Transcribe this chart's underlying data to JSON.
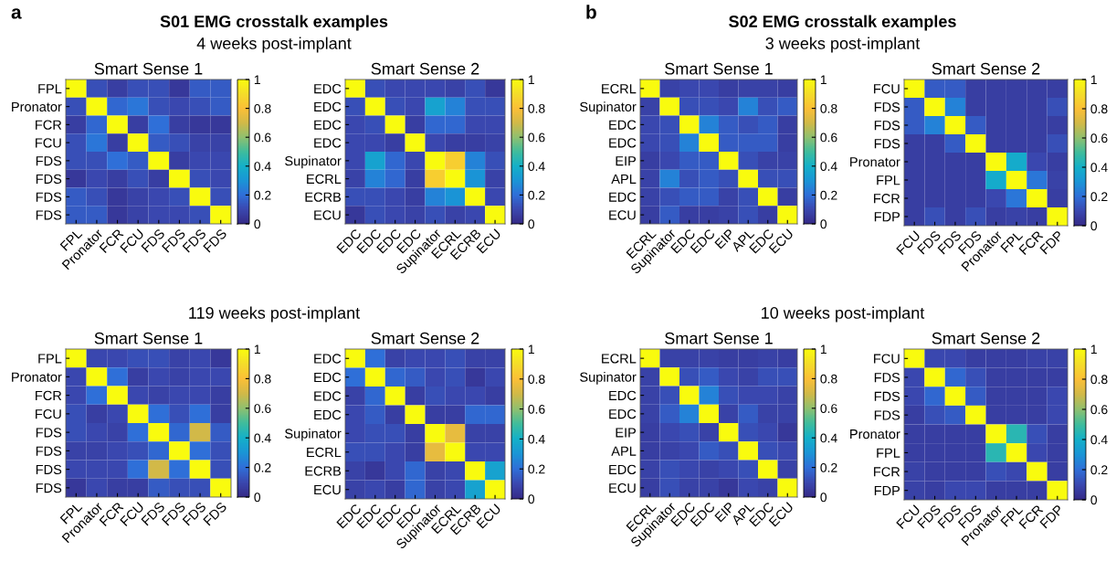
{
  "chart_data": [
    {
      "type": "heatmap",
      "title": "Smart Sense 1",
      "annotations": [
        "a",
        "S01 EMG crosstalk examples",
        "4 weeks post-implant"
      ],
      "categories": [
        "FPL",
        "Pronator",
        "FCR",
        "FCU",
        "FDS",
        "FDS",
        "FDS",
        "FDS"
      ],
      "y_categories": [
        "FPL",
        "Pronator",
        "FCR",
        "FCU",
        "FDS",
        "FDS",
        "FDS",
        "FDS"
      ],
      "cells": [
        [
          1,
          0.12,
          0.07,
          0.12,
          0.12,
          0.05,
          0.15,
          0.15
        ],
        [
          0.12,
          1,
          0.18,
          0.22,
          0.12,
          0.1,
          0.12,
          0.15
        ],
        [
          0.07,
          0.18,
          1,
          0.07,
          0.2,
          0.07,
          0.05,
          0.05
        ],
        [
          0.12,
          0.22,
          0.07,
          1,
          0.15,
          0.12,
          0.08,
          0.08
        ],
        [
          0.12,
          0.12,
          0.2,
          0.15,
          1,
          0.07,
          0.1,
          0.1
        ],
        [
          0.05,
          0.1,
          0.07,
          0.12,
          0.07,
          1,
          0.12,
          0.1
        ],
        [
          0.15,
          0.12,
          0.05,
          0.08,
          0.1,
          0.12,
          1,
          0.12
        ],
        [
          0.15,
          0.15,
          0.05,
          0.08,
          0.1,
          0.1,
          0.12,
          1
        ]
      ],
      "clim": [
        0,
        1
      ],
      "cticks": [
        0,
        0.2,
        0.4,
        0.6,
        0.8,
        1
      ]
    },
    {
      "type": "heatmap",
      "title": "Smart Sense 2",
      "categories": [
        "EDC",
        "EDC",
        "EDC",
        "EDC",
        "Supinator",
        "ECRL",
        "ECRB",
        "ECU"
      ],
      "y_categories": [
        "EDC",
        "EDC",
        "EDC",
        "EDC",
        "Supinator",
        "ECRL",
        "ECRB",
        "ECU"
      ],
      "cells": [
        [
          1,
          0.12,
          0.1,
          0.1,
          0.1,
          0.08,
          0.12,
          0.05
        ],
        [
          0.12,
          1,
          0.12,
          0.1,
          0.35,
          0.25,
          0.12,
          0.12
        ],
        [
          0.1,
          0.12,
          1,
          0.07,
          0.18,
          0.18,
          0.1,
          0.1
        ],
        [
          0.1,
          0.1,
          0.07,
          1,
          0.1,
          0.07,
          0.07,
          0.08
        ],
        [
          0.1,
          0.35,
          0.18,
          0.1,
          1,
          0.85,
          0.25,
          0.12
        ],
        [
          0.08,
          0.25,
          0.18,
          0.07,
          0.85,
          1,
          0.3,
          0.08
        ],
        [
          0.12,
          0.12,
          0.1,
          0.07,
          0.25,
          0.3,
          1,
          0.1
        ],
        [
          0.05,
          0.12,
          0.1,
          0.08,
          0.12,
          0.08,
          0.1,
          1
        ]
      ],
      "clim": [
        0,
        1
      ],
      "cticks": [
        0,
        0.2,
        0.4,
        0.6,
        0.8,
        1
      ]
    },
    {
      "type": "heatmap",
      "title": "Smart Sense 1",
      "annotations": [
        "b",
        "S02 EMG crosstalk examples",
        "3 weeks post-implant"
      ],
      "categories": [
        "ECRL",
        "Supinator",
        "EDC",
        "EDC",
        "EIP",
        "APL",
        "EDC",
        "ECU"
      ],
      "y_categories": [
        "ECRL",
        "Supinator",
        "EDC",
        "EDC",
        "EIP",
        "APL",
        "EDC",
        "ECU"
      ],
      "cells": [
        [
          1,
          0.08,
          0.1,
          0.1,
          0.07,
          0.08,
          0.08,
          0.07
        ],
        [
          0.08,
          1,
          0.12,
          0.12,
          0.1,
          0.25,
          0.12,
          0.15
        ],
        [
          0.1,
          0.12,
          1,
          0.25,
          0.15,
          0.12,
          0.15,
          0.07
        ],
        [
          0.1,
          0.12,
          0.25,
          1,
          0.15,
          0.15,
          0.15,
          0.07
        ],
        [
          0.07,
          0.1,
          0.15,
          0.15,
          1,
          0.12,
          0.08,
          0.08
        ],
        [
          0.08,
          0.25,
          0.12,
          0.15,
          0.12,
          1,
          0.12,
          0.12
        ],
        [
          0.08,
          0.12,
          0.15,
          0.15,
          0.08,
          0.12,
          1,
          0.07
        ],
        [
          0.07,
          0.15,
          0.07,
          0.07,
          0.08,
          0.12,
          0.07,
          1
        ]
      ],
      "clim": [
        0,
        1
      ],
      "cticks": [
        0,
        0.2,
        0.4,
        0.6,
        0.8,
        1
      ]
    },
    {
      "type": "heatmap",
      "title": "Smart Sense 2",
      "categories": [
        "FCU",
        "FDS",
        "FDS",
        "FDS",
        "Pronator",
        "FPL",
        "FCR",
        "FDP"
      ],
      "y_categories": [
        "FCU",
        "FDS",
        "FDS",
        "FDS",
        "Pronator",
        "FPL",
        "FCR",
        "FDP"
      ],
      "cells": [
        [
          1,
          0.15,
          0.15,
          0.07,
          0.07,
          0.07,
          0.07,
          0.07
        ],
        [
          0.15,
          1,
          0.25,
          0.07,
          0.07,
          0.07,
          0.07,
          0.12
        ],
        [
          0.15,
          0.25,
          1,
          0.15,
          0.07,
          0.07,
          0.07,
          0.07
        ],
        [
          0.07,
          0.07,
          0.15,
          1,
          0.07,
          0.07,
          0.07,
          0.12
        ],
        [
          0.07,
          0.07,
          0.07,
          0.07,
          1,
          0.38,
          0.1,
          0.07
        ],
        [
          0.07,
          0.07,
          0.07,
          0.07,
          0.38,
          1,
          0.22,
          0.08
        ],
        [
          0.07,
          0.07,
          0.07,
          0.07,
          0.1,
          0.22,
          1,
          0.07
        ],
        [
          0.07,
          0.12,
          0.07,
          0.12,
          0.07,
          0.08,
          0.07,
          1
        ]
      ],
      "clim": [
        0,
        1
      ],
      "cticks": [
        0,
        0.2,
        0.4,
        0.6,
        0.8,
        1
      ]
    },
    {
      "type": "heatmap",
      "title": "Smart Sense 1",
      "annotations": [
        "119 weeks post-implant"
      ],
      "categories": [
        "FPL",
        "Pronator",
        "FCR",
        "FCU",
        "FDS",
        "FDS",
        "FDS",
        "FDS"
      ],
      "y_categories": [
        "FPL",
        "Pronator",
        "FCR",
        "FCU",
        "FDS",
        "FDS",
        "FDS",
        "FDS"
      ],
      "cells": [
        [
          1,
          0.1,
          0.1,
          0.12,
          0.12,
          0.08,
          0.1,
          0.05
        ],
        [
          0.1,
          1,
          0.2,
          0.07,
          0.1,
          0.08,
          0.1,
          0.1
        ],
        [
          0.1,
          0.2,
          1,
          0.1,
          0.08,
          0.1,
          0.1,
          0.07
        ],
        [
          0.12,
          0.07,
          0.1,
          1,
          0.2,
          0.12,
          0.2,
          0.07
        ],
        [
          0.12,
          0.1,
          0.08,
          0.2,
          1,
          0.18,
          0.7,
          0.15
        ],
        [
          0.08,
          0.08,
          0.1,
          0.12,
          0.18,
          1,
          0.2,
          0.12
        ],
        [
          0.1,
          0.1,
          0.1,
          0.2,
          0.7,
          0.2,
          1,
          0.12
        ],
        [
          0.05,
          0.1,
          0.07,
          0.07,
          0.15,
          0.12,
          0.12,
          1
        ]
      ],
      "clim": [
        0,
        1
      ],
      "cticks": [
        0,
        0.2,
        0.4,
        0.6,
        0.8,
        1
      ]
    },
    {
      "type": "heatmap",
      "title": "Smart Sense 2",
      "categories": [
        "EDC",
        "EDC",
        "EDC",
        "EDC",
        "Supinator",
        "ECRL",
        "ECRB",
        "ECU"
      ],
      "y_categories": [
        "EDC",
        "EDC",
        "EDC",
        "EDC",
        "Supinator",
        "ECRL",
        "ECRB",
        "ECU"
      ],
      "cells": [
        [
          1,
          0.2,
          0.08,
          0.1,
          0.1,
          0.12,
          0.08,
          0.08
        ],
        [
          0.2,
          1,
          0.18,
          0.15,
          0.1,
          0.12,
          0.05,
          0.1
        ],
        [
          0.08,
          0.18,
          1,
          0.07,
          0.12,
          0.1,
          0.1,
          0.07
        ],
        [
          0.1,
          0.15,
          0.07,
          1,
          0.07,
          0.07,
          0.18,
          0.18
        ],
        [
          0.1,
          0.12,
          0.12,
          0.07,
          1,
          0.75,
          0.08,
          0.08
        ],
        [
          0.12,
          0.12,
          0.1,
          0.07,
          0.75,
          1,
          0.1,
          0.1
        ],
        [
          0.08,
          0.05,
          0.1,
          0.18,
          0.08,
          0.1,
          1,
          0.35
        ],
        [
          0.08,
          0.1,
          0.07,
          0.18,
          0.08,
          0.1,
          0.35,
          1
        ]
      ],
      "clim": [
        0,
        1
      ],
      "cticks": [
        0,
        0.2,
        0.4,
        0.6,
        0.8,
        1
      ]
    },
    {
      "type": "heatmap",
      "title": "Smart Sense 1",
      "annotations": [
        "10 weeks post-implant"
      ],
      "categories": [
        "ECRL",
        "Supinator",
        "EDC",
        "EDC",
        "EIP",
        "APL",
        "EDC",
        "ECU"
      ],
      "y_categories": [
        "ECRL",
        "Supinator",
        "EDC",
        "EDC",
        "EIP",
        "APL",
        "EDC",
        "ECU"
      ],
      "cells": [
        [
          1,
          0.08,
          0.08,
          0.08,
          0.07,
          0.07,
          0.08,
          0.07
        ],
        [
          0.08,
          1,
          0.12,
          0.15,
          0.1,
          0.08,
          0.12,
          0.12
        ],
        [
          0.08,
          0.12,
          1,
          0.25,
          0.12,
          0.1,
          0.1,
          0.08
        ],
        [
          0.08,
          0.15,
          0.25,
          1,
          0.08,
          0.15,
          0.08,
          0.08
        ],
        [
          0.07,
          0.1,
          0.12,
          0.08,
          1,
          0.12,
          0.1,
          0.05
        ],
        [
          0.07,
          0.08,
          0.1,
          0.15,
          0.12,
          1,
          0.12,
          0.1
        ],
        [
          0.08,
          0.12,
          0.1,
          0.08,
          0.1,
          0.12,
          1,
          0.08
        ],
        [
          0.07,
          0.12,
          0.08,
          0.08,
          0.05,
          0.1,
          0.08,
          1
        ]
      ],
      "clim": [
        0,
        1
      ],
      "cticks": [
        0,
        0.2,
        0.4,
        0.6,
        0.8,
        1
      ]
    },
    {
      "type": "heatmap",
      "title": "Smart Sense 2",
      "categories": [
        "FCU",
        "FDS",
        "FDS",
        "FDS",
        "Pronator",
        "FPL",
        "FCR",
        "FDP"
      ],
      "y_categories": [
        "FCU",
        "FDS",
        "FDS",
        "FDS",
        "Pronator",
        "FPL",
        "FCR",
        "FDP"
      ],
      "cells": [
        [
          1,
          0.1,
          0.1,
          0.07,
          0.07,
          0.07,
          0.08,
          0.08
        ],
        [
          0.1,
          1,
          0.18,
          0.12,
          0.07,
          0.07,
          0.07,
          0.07
        ],
        [
          0.1,
          0.18,
          1,
          0.15,
          0.07,
          0.07,
          0.07,
          0.1
        ],
        [
          0.07,
          0.12,
          0.15,
          1,
          0.07,
          0.07,
          0.07,
          0.1
        ],
        [
          0.07,
          0.07,
          0.07,
          0.07,
          1,
          0.45,
          0.12,
          0.07
        ],
        [
          0.07,
          0.07,
          0.07,
          0.07,
          0.45,
          1,
          0.1,
          0.07
        ],
        [
          0.08,
          0.07,
          0.07,
          0.07,
          0.12,
          0.1,
          1,
          0.07
        ],
        [
          0.08,
          0.07,
          0.1,
          0.1,
          0.07,
          0.07,
          0.07,
          1
        ]
      ],
      "clim": [
        0,
        1
      ],
      "cticks": [
        0,
        0.2,
        0.4,
        0.6,
        0.8,
        1
      ]
    }
  ]
}
